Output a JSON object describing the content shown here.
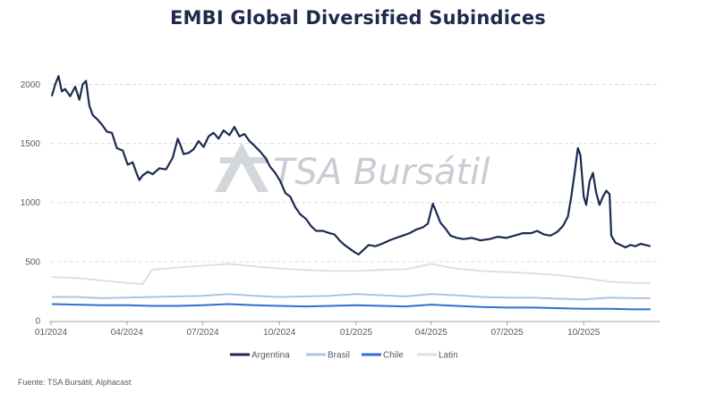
{
  "chart_data": {
    "type": "line",
    "title": "EMBI Global Diversified Subindices",
    "xlabel": "",
    "ylabel": "",
    "ylim": [
      0,
      2200
    ],
    "yticks": [
      0,
      500,
      1000,
      1500,
      2000
    ],
    "xlim": [
      "2024-01-01",
      "2025-12-31"
    ],
    "xticks": [
      {
        "date": "2024-01-01",
        "label": "01/2024"
      },
      {
        "date": "2024-04-01",
        "label": "04/2024"
      },
      {
        "date": "2024-07-01",
        "label": "07/2024"
      },
      {
        "date": "2024-10-01",
        "label": "10/2024"
      },
      {
        "date": "2025-01-01",
        "label": "01/2025"
      },
      {
        "date": "2025-04-01",
        "label": "04/2025"
      },
      {
        "date": "2025-07-01",
        "label": "07/2025"
      },
      {
        "date": "2025-10-01",
        "label": "10/2025"
      }
    ],
    "grid": "horizontal-dashed",
    "legend": "bottom-center",
    "series": [
      {
        "name": "Argentina",
        "color": "#1c2a52",
        "points": [
          [
            "2024-01-02",
            1900
          ],
          [
            "2024-01-06",
            2000
          ],
          [
            "2024-01-10",
            2070
          ],
          [
            "2024-01-14",
            1940
          ],
          [
            "2024-01-18",
            1960
          ],
          [
            "2024-01-24",
            1900
          ],
          [
            "2024-01-30",
            1980
          ],
          [
            "2024-02-04",
            1870
          ],
          [
            "2024-02-08",
            2000
          ],
          [
            "2024-02-12",
            2030
          ],
          [
            "2024-02-16",
            1820
          ],
          [
            "2024-02-20",
            1740
          ],
          [
            "2024-02-26",
            1700
          ],
          [
            "2024-03-02",
            1660
          ],
          [
            "2024-03-08",
            1600
          ],
          [
            "2024-03-14",
            1590
          ],
          [
            "2024-03-20",
            1460
          ],
          [
            "2024-03-27",
            1440
          ],
          [
            "2024-04-02",
            1320
          ],
          [
            "2024-04-08",
            1340
          ],
          [
            "2024-04-12",
            1260
          ],
          [
            "2024-04-16",
            1190
          ],
          [
            "2024-04-20",
            1230
          ],
          [
            "2024-04-26",
            1260
          ],
          [
            "2024-05-02",
            1240
          ],
          [
            "2024-05-10",
            1290
          ],
          [
            "2024-05-18",
            1280
          ],
          [
            "2024-05-26",
            1380
          ],
          [
            "2024-06-01",
            1540
          ],
          [
            "2024-06-04",
            1490
          ],
          [
            "2024-06-08",
            1410
          ],
          [
            "2024-06-14",
            1420
          ],
          [
            "2024-06-20",
            1450
          ],
          [
            "2024-06-26",
            1520
          ],
          [
            "2024-07-02",
            1470
          ],
          [
            "2024-07-08",
            1560
          ],
          [
            "2024-07-14",
            1590
          ],
          [
            "2024-07-20",
            1540
          ],
          [
            "2024-07-26",
            1610
          ],
          [
            "2024-08-02",
            1570
          ],
          [
            "2024-08-08",
            1640
          ],
          [
            "2024-08-14",
            1560
          ],
          [
            "2024-08-20",
            1580
          ],
          [
            "2024-08-26",
            1520
          ],
          [
            "2024-09-01",
            1480
          ],
          [
            "2024-09-08",
            1430
          ],
          [
            "2024-09-14",
            1380
          ],
          [
            "2024-09-20",
            1300
          ],
          [
            "2024-09-26",
            1250
          ],
          [
            "2024-10-02",
            1180
          ],
          [
            "2024-10-08",
            1080
          ],
          [
            "2024-10-14",
            1050
          ],
          [
            "2024-10-20",
            960
          ],
          [
            "2024-10-26",
            900
          ],
          [
            "2024-11-02",
            860
          ],
          [
            "2024-11-08",
            800
          ],
          [
            "2024-11-14",
            760
          ],
          [
            "2024-11-22",
            760
          ],
          [
            "2024-11-30",
            740
          ],
          [
            "2024-12-06",
            730
          ],
          [
            "2024-12-12",
            680
          ],
          [
            "2024-12-18",
            640
          ],
          [
            "2024-12-24",
            610
          ],
          [
            "2024-12-30",
            580
          ],
          [
            "2025-01-04",
            560
          ],
          [
            "2025-01-10",
            600
          ],
          [
            "2025-01-16",
            640
          ],
          [
            "2025-01-24",
            630
          ],
          [
            "2025-02-01",
            650
          ],
          [
            "2025-02-10",
            680
          ],
          [
            "2025-02-18",
            700
          ],
          [
            "2025-02-26",
            720
          ],
          [
            "2025-03-06",
            740
          ],
          [
            "2025-03-14",
            770
          ],
          [
            "2025-03-22",
            790
          ],
          [
            "2025-03-28",
            820
          ],
          [
            "2025-04-03",
            990
          ],
          [
            "2025-04-07",
            920
          ],
          [
            "2025-04-12",
            830
          ],
          [
            "2025-04-18",
            780
          ],
          [
            "2025-04-24",
            720
          ],
          [
            "2025-05-02",
            700
          ],
          [
            "2025-05-10",
            690
          ],
          [
            "2025-05-20",
            700
          ],
          [
            "2025-05-30",
            680
          ],
          [
            "2025-06-10",
            690
          ],
          [
            "2025-06-20",
            710
          ],
          [
            "2025-06-30",
            700
          ],
          [
            "2025-07-10",
            720
          ],
          [
            "2025-07-20",
            740
          ],
          [
            "2025-07-30",
            740
          ],
          [
            "2025-08-06",
            760
          ],
          [
            "2025-08-14",
            730
          ],
          [
            "2025-08-22",
            720
          ],
          [
            "2025-08-30",
            750
          ],
          [
            "2025-09-06",
            800
          ],
          [
            "2025-09-12",
            880
          ],
          [
            "2025-09-16",
            1050
          ],
          [
            "2025-09-20",
            1250
          ],
          [
            "2025-09-24",
            1460
          ],
          [
            "2025-09-27",
            1400
          ],
          [
            "2025-10-01",
            1050
          ],
          [
            "2025-10-04",
            980
          ],
          [
            "2025-10-08",
            1180
          ],
          [
            "2025-10-12",
            1250
          ],
          [
            "2025-10-16",
            1080
          ],
          [
            "2025-10-20",
            980
          ],
          [
            "2025-10-24",
            1050
          ],
          [
            "2025-10-28",
            1100
          ],
          [
            "2025-11-01",
            1070
          ],
          [
            "2025-11-03",
            720
          ],
          [
            "2025-11-08",
            660
          ],
          [
            "2025-11-14",
            640
          ],
          [
            "2025-11-20",
            620
          ],
          [
            "2025-11-26",
            640
          ],
          [
            "2025-12-02",
            630
          ],
          [
            "2025-12-08",
            650
          ],
          [
            "2025-12-14",
            640
          ],
          [
            "2025-12-20",
            630
          ]
        ]
      },
      {
        "name": "Brasil",
        "color": "#a9c4e4",
        "points": [
          [
            "2024-01-02",
            200
          ],
          [
            "2024-02-01",
            200
          ],
          [
            "2024-03-01",
            190
          ],
          [
            "2024-04-01",
            195
          ],
          [
            "2024-05-01",
            200
          ],
          [
            "2024-06-01",
            205
          ],
          [
            "2024-07-01",
            210
          ],
          [
            "2024-08-01",
            225
          ],
          [
            "2024-09-01",
            210
          ],
          [
            "2024-10-01",
            200
          ],
          [
            "2024-11-01",
            205
          ],
          [
            "2024-12-01",
            210
          ],
          [
            "2025-01-01",
            225
          ],
          [
            "2025-02-01",
            215
          ],
          [
            "2025-03-01",
            205
          ],
          [
            "2025-04-01",
            225
          ],
          [
            "2025-05-01",
            215
          ],
          [
            "2025-06-01",
            200
          ],
          [
            "2025-07-01",
            195
          ],
          [
            "2025-08-01",
            195
          ],
          [
            "2025-09-01",
            185
          ],
          [
            "2025-10-01",
            180
          ],
          [
            "2025-11-01",
            195
          ],
          [
            "2025-12-01",
            190
          ],
          [
            "2025-12-20",
            190
          ]
        ]
      },
      {
        "name": "Chile",
        "color": "#2f6fd0",
        "points": [
          [
            "2024-01-02",
            140
          ],
          [
            "2024-02-01",
            135
          ],
          [
            "2024-03-01",
            130
          ],
          [
            "2024-04-01",
            130
          ],
          [
            "2024-05-01",
            125
          ],
          [
            "2024-06-01",
            125
          ],
          [
            "2024-07-01",
            130
          ],
          [
            "2024-08-01",
            140
          ],
          [
            "2024-09-01",
            130
          ],
          [
            "2024-10-01",
            125
          ],
          [
            "2024-11-01",
            120
          ],
          [
            "2024-12-01",
            125
          ],
          [
            "2025-01-01",
            130
          ],
          [
            "2025-02-01",
            125
          ],
          [
            "2025-03-01",
            120
          ],
          [
            "2025-04-01",
            135
          ],
          [
            "2025-05-01",
            125
          ],
          [
            "2025-06-01",
            115
          ],
          [
            "2025-07-01",
            110
          ],
          [
            "2025-08-01",
            110
          ],
          [
            "2025-09-01",
            105
          ],
          [
            "2025-10-01",
            100
          ],
          [
            "2025-11-01",
            100
          ],
          [
            "2025-12-01",
            95
          ],
          [
            "2025-12-20",
            95
          ]
        ]
      },
      {
        "name": "Latin",
        "color": "#dcdfe4",
        "points": [
          [
            "2024-01-02",
            370
          ],
          [
            "2024-02-01",
            360
          ],
          [
            "2024-03-01",
            340
          ],
          [
            "2024-04-01",
            320
          ],
          [
            "2024-04-20",
            310
          ],
          [
            "2024-05-01",
            430
          ],
          [
            "2024-06-01",
            450
          ],
          [
            "2024-07-01",
            465
          ],
          [
            "2024-08-01",
            480
          ],
          [
            "2024-09-01",
            460
          ],
          [
            "2024-10-01",
            440
          ],
          [
            "2024-11-01",
            430
          ],
          [
            "2024-12-01",
            420
          ],
          [
            "2025-01-01",
            420
          ],
          [
            "2025-02-01",
            430
          ],
          [
            "2025-03-01",
            435
          ],
          [
            "2025-04-01",
            480
          ],
          [
            "2025-05-01",
            440
          ],
          [
            "2025-06-01",
            420
          ],
          [
            "2025-07-01",
            410
          ],
          [
            "2025-08-01",
            400
          ],
          [
            "2025-09-01",
            385
          ],
          [
            "2025-10-01",
            360
          ],
          [
            "2025-11-01",
            330
          ],
          [
            "2025-12-01",
            320
          ],
          [
            "2025-12-20",
            315
          ]
        ]
      }
    ]
  },
  "watermark": {
    "text": "TSA Bursátil"
  },
  "source_note": "Fuente: TSA Bursátil, Alphacast"
}
